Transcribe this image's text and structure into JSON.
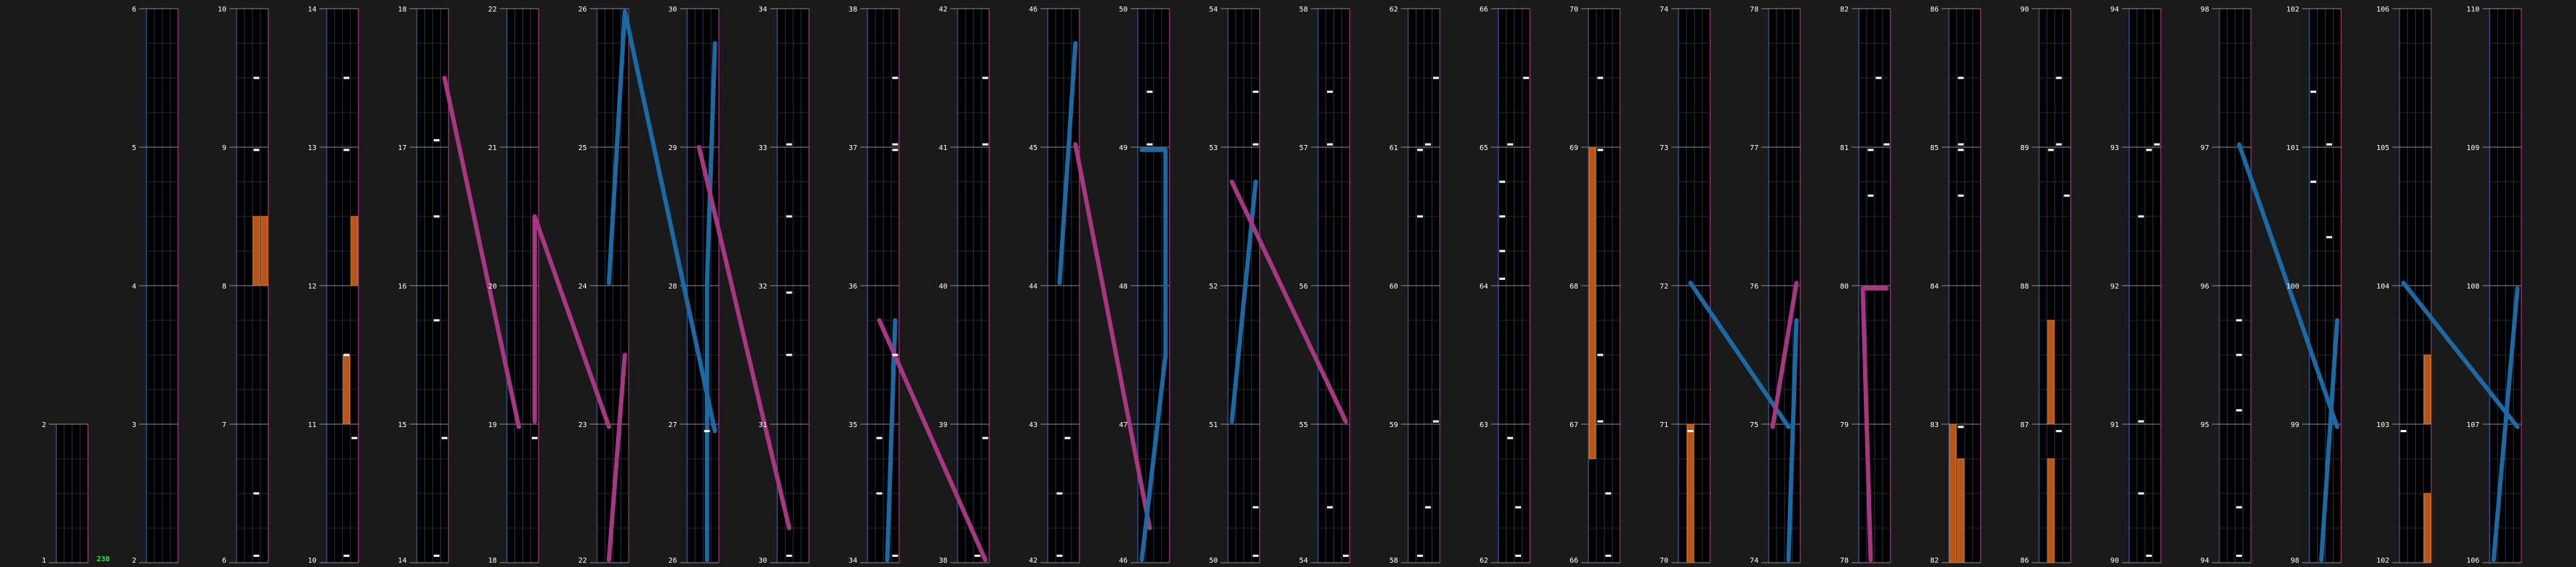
{
  "chart_data": {
    "type": "rhythm-game-chart",
    "title": "",
    "columns_per_measure": 4,
    "first_measure": 1,
    "last_measure": 110,
    "measures_per_strip": 4,
    "strip_bottom_measures": [
      1,
      2,
      6,
      10,
      14,
      18,
      22,
      26,
      30,
      34,
      38,
      42,
      46,
      50,
      54,
      58,
      62,
      66,
      70,
      74,
      78,
      82,
      86,
      90,
      94,
      98,
      102,
      106
    ],
    "combo_label": "238",
    "colors": {
      "background": "#1a1a1a",
      "lane_area": "#000000",
      "lane_line": "#22334d",
      "beat_line": "#2a2a2a",
      "measure_line": "#909090",
      "lane_edge_left": "#2b4f8a",
      "lane_edge_right": "#8a2f6f",
      "slide_blue": "#1b6aa6",
      "slide_pink": "#a73782",
      "hold_orange": "#b8561a",
      "hold_edge": "#e07a2a",
      "tap_note": "#ffffff",
      "measure_number": "#ffffff",
      "combo_text": "#33ee33"
    },
    "tap_notes": [
      [
        10,
        0.9,
        3
      ],
      [
        14,
        0.9,
        3
      ],
      [
        18,
        0.9,
        3
      ],
      [
        6,
        0.05,
        2
      ],
      [
        6,
        0.5,
        2
      ],
      [
        8,
        0.98,
        2
      ],
      [
        9,
        0.5,
        2
      ],
      [
        10,
        0.05,
        2
      ],
      [
        11,
        0.5,
        2
      ],
      [
        12,
        0.98,
        2
      ],
      [
        13,
        0.5,
        2
      ],
      [
        14,
        0.05,
        2
      ],
      [
        15,
        0.75,
        2
      ],
      [
        16,
        0.5,
        2
      ],
      [
        17,
        0.05,
        2
      ],
      [
        26,
        0.95,
        2
      ],
      [
        30,
        0.05,
        1
      ],
      [
        31,
        0.5,
        1
      ],
      [
        31,
        0.95,
        1
      ],
      [
        32,
        0.5,
        1
      ],
      [
        33,
        0.02,
        1
      ],
      [
        34,
        0.5,
        1
      ],
      [
        34,
        0.9,
        1
      ],
      [
        34,
        0.05,
        3
      ],
      [
        35,
        0.5,
        3
      ],
      [
        36,
        0.98,
        3
      ],
      [
        37,
        0.02,
        3
      ],
      [
        37,
        0.5,
        3
      ],
      [
        38,
        0.9,
        3
      ],
      [
        42,
        0.05,
        1
      ],
      [
        42,
        0.5,
        1
      ],
      [
        42,
        0.9,
        2
      ],
      [
        41,
        0.5,
        3
      ],
      [
        41,
        0.02,
        3
      ],
      [
        38,
        0.05,
        2
      ],
      [
        49,
        0.02,
        1
      ],
      [
        49,
        0.4,
        1
      ],
      [
        50,
        0.05,
        3
      ],
      [
        50,
        0.4,
        3
      ],
      [
        53,
        0.02,
        3
      ],
      [
        53,
        0.4,
        3
      ],
      [
        54,
        0.05,
        3
      ],
      [
        54,
        0.4,
        1
      ],
      [
        57,
        0.02,
        1
      ],
      [
        57,
        0.4,
        1
      ],
      [
        58,
        0.05,
        1
      ],
      [
        58,
        0.4,
        2
      ],
      [
        59,
        0.02,
        3
      ],
      [
        60,
        0.5,
        1
      ],
      [
        60,
        0.98,
        1
      ],
      [
        61,
        0.02,
        2
      ],
      [
        61,
        0.5,
        3
      ],
      [
        62,
        0.05,
        2
      ],
      [
        62,
        0.4,
        2
      ],
      [
        62,
        0.9,
        1
      ],
      [
        64,
        0.05,
        0
      ],
      [
        64,
        0.25,
        0
      ],
      [
        64,
        0.5,
        0
      ],
      [
        64,
        0.75,
        0
      ],
      [
        65,
        0.02,
        1
      ],
      [
        65,
        0.5,
        3
      ],
      [
        66,
        0.05,
        2
      ],
      [
        66,
        0.5,
        2
      ],
      [
        67,
        0.02,
        1
      ],
      [
        67,
        0.5,
        1
      ],
      [
        68,
        0.98,
        1
      ],
      [
        69,
        0.5,
        1
      ],
      [
        70,
        0.95,
        1
      ],
      [
        81,
        0.02,
        3
      ],
      [
        81,
        0.5,
        2
      ],
      [
        82,
        0.98,
        1
      ],
      [
        80,
        0.65,
        1
      ],
      [
        80,
        0.98,
        1
      ],
      [
        84,
        0.65,
        1
      ],
      [
        84,
        0.98,
        1
      ],
      [
        85,
        0.02,
        1
      ],
      [
        85,
        0.5,
        1
      ],
      [
        86,
        0.95,
        2
      ],
      [
        88,
        0.98,
        1
      ],
      [
        88,
        0.65,
        3
      ],
      [
        89,
        0.02,
        2
      ],
      [
        89,
        0.5,
        2
      ],
      [
        90,
        0.05,
        2
      ],
      [
        90,
        0.5,
        1
      ],
      [
        91,
        0.02,
        1
      ],
      [
        92,
        0.5,
        1
      ],
      [
        92,
        0.98,
        2
      ],
      [
        93,
        0.02,
        3
      ],
      [
        94,
        0.05,
        2
      ],
      [
        94,
        0.4,
        2
      ],
      [
        95,
        0.75,
        2
      ],
      [
        95,
        0.5,
        2
      ],
      [
        95,
        0.1,
        2
      ],
      [
        100,
        0.75,
        0
      ],
      [
        100,
        0.35,
        2
      ],
      [
        101,
        0.02,
        2
      ],
      [
        101,
        0.4,
        0
      ],
      [
        102,
        0.95,
        0
      ]
    ],
    "holds": [
      [
        8,
        0.0,
        8,
        0.5,
        2
      ],
      [
        8,
        0.0,
        8,
        0.5,
        3
      ],
      [
        11,
        0.0,
        11,
        0.5,
        2
      ],
      [
        12,
        0.0,
        12,
        0.5,
        3
      ],
      [
        69,
        0.0,
        70,
        0.75,
        0
      ],
      [
        70,
        0.0,
        71,
        0.0,
        1
      ],
      [
        82,
        0.0,
        82,
        0.75,
        1
      ],
      [
        82,
        0.0,
        83,
        0.0,
        0
      ],
      [
        86,
        0.0,
        86,
        0.75,
        1
      ],
      [
        87,
        0.0,
        87,
        0.75,
        1
      ],
      [
        102,
        0.0,
        102,
        0.5,
        3
      ],
      [
        103,
        0.0,
        103,
        0.5,
        3
      ],
      [
        15,
        0.0,
        15,
        0.0,
        0
      ]
    ],
    "slides": [
      {
        "color": "pink",
        "points": [
          [
            17,
            0.5,
            3
          ],
          [
            18,
            0.98,
            1
          ]
        ]
      },
      {
        "color": "pink",
        "points": [
          [
            19,
            0.02,
            3
          ],
          [
            20,
            0.5,
            3
          ],
          [
            22,
            0.98,
            1
          ]
        ]
      },
      {
        "color": "pink",
        "points": [
          [
            22,
            0.02,
            1
          ],
          [
            23,
            0.5,
            3
          ]
        ]
      },
      {
        "color": "blue",
        "points": [
          [
            24,
            0.02,
            1
          ],
          [
            25,
            0.98,
            3
          ],
          [
            26,
            0.95,
            3
          ]
        ]
      },
      {
        "color": "blue",
        "points": [
          [
            26,
            0.02,
            2
          ],
          [
            27,
            0.98,
            2
          ],
          [
            28,
            0.02,
            2
          ],
          [
            29,
            0.75,
            3
          ]
        ]
      },
      {
        "color": "pink",
        "points": [
          [
            29,
            0.0,
            1
          ],
          [
            30,
            0.25,
            1
          ]
        ]
      },
      {
        "color": "blue",
        "points": [
          [
            34,
            0.02,
            2
          ],
          [
            35,
            0.75,
            3
          ]
        ]
      },
      {
        "color": "pink",
        "points": [
          [
            35,
            0.75,
            1
          ],
          [
            38,
            0.02,
            3
          ]
        ]
      },
      {
        "color": "blue",
        "points": [
          [
            44,
            0.02,
            1
          ],
          [
            45,
            0.75,
            3
          ]
        ]
      },
      {
        "color": "pink",
        "points": [
          [
            45,
            0.02,
            3
          ],
          [
            46,
            0.25,
            1
          ]
        ]
      },
      {
        "color": "blue",
        "points": [
          [
            46,
            0.02,
            0
          ],
          [
            47,
            0.5,
            3
          ],
          [
            48,
            0.98,
            3
          ],
          [
            48,
            0.98,
            0
          ]
        ]
      },
      {
        "color": "blue",
        "points": [
          [
            51,
            0.02,
            0
          ],
          [
            52,
            0.75,
            3
          ]
        ]
      },
      {
        "color": "pink",
        "points": [
          [
            52,
            0.75,
            0
          ],
          [
            55,
            0.02,
            3
          ]
        ]
      },
      {
        "color": "blue",
        "points": [
          [
            72,
            0.02,
            1
          ],
          [
            74,
            0.98,
            2
          ]
        ]
      },
      {
        "color": "blue",
        "points": [
          [
            74,
            0.02,
            2
          ],
          [
            75,
            0.75,
            3
          ]
        ]
      },
      {
        "color": "pink",
        "points": [
          [
            74,
            0.98,
            0
          ],
          [
            76,
            0.02,
            3
          ]
        ]
      },
      {
        "color": "pink",
        "points": [
          [
            78,
            0.02,
            1
          ],
          [
            79,
            0.98,
            0
          ],
          [
            79,
            0.98,
            3
          ]
        ]
      },
      {
        "color": "blue",
        "points": [
          [
            97,
            0.02,
            2
          ],
          [
            98,
            0.98,
            3
          ]
        ]
      },
      {
        "color": "blue",
        "points": [
          [
            98,
            0.02,
            1
          ],
          [
            99,
            0.75,
            3
          ]
        ]
      },
      {
        "color": "blue",
        "points": [
          [
            104,
            0.02,
            0
          ],
          [
            106,
            0.98,
            3
          ]
        ]
      },
      {
        "color": "blue",
        "points": [
          [
            106,
            0.02,
            0
          ],
          [
            107,
            0.98,
            3
          ]
        ]
      }
    ]
  }
}
